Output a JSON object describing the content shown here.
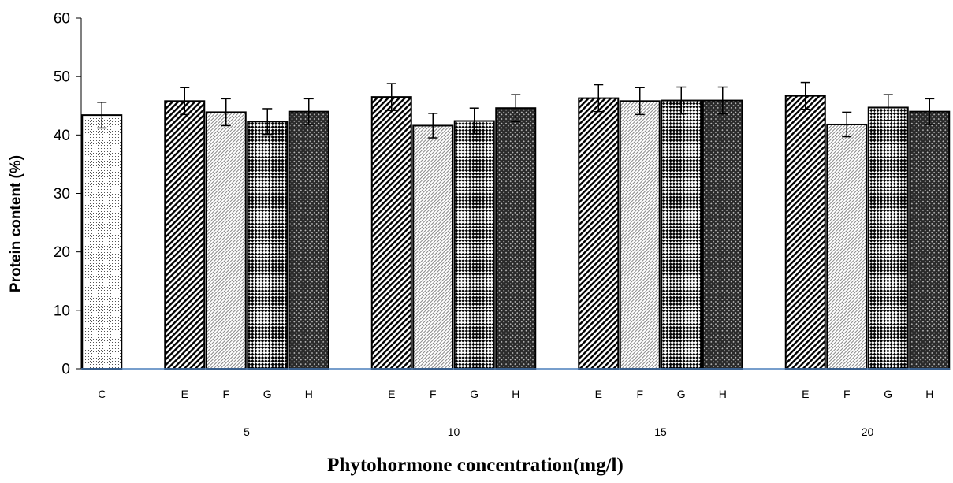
{
  "chart_data": {
    "type": "bar",
    "title": "",
    "xlabel": "Phytohormone concentration(mg/l)",
    "ylabel": "Protein content (%)",
    "ylim": [
      0,
      60
    ],
    "yticks": [
      "0",
      "10",
      "20",
      "30",
      "40",
      "50",
      "60"
    ],
    "grid": false,
    "legend": "none",
    "groups": [
      {
        "label": "",
        "bars": [
          {
            "category": "C",
            "value": 43.4,
            "error": 2.2,
            "pattern": "dots"
          }
        ]
      },
      {
        "label": "5",
        "bars": [
          {
            "category": "E",
            "value": 45.8,
            "error": 2.3,
            "pattern": "diagonal"
          },
          {
            "category": "F",
            "value": 43.9,
            "error": 2.3,
            "pattern": "fine"
          },
          {
            "category": "G",
            "value": 42.3,
            "error": 2.2,
            "pattern": "checker"
          },
          {
            "category": "H",
            "value": 44.0,
            "error": 2.2,
            "pattern": "dense"
          }
        ]
      },
      {
        "label": "10",
        "bars": [
          {
            "category": "E",
            "value": 46.5,
            "error": 2.3,
            "pattern": "diagonal"
          },
          {
            "category": "F",
            "value": 41.6,
            "error": 2.1,
            "pattern": "fine"
          },
          {
            "category": "G",
            "value": 42.4,
            "error": 2.2,
            "pattern": "checker"
          },
          {
            "category": "H",
            "value": 44.6,
            "error": 2.3,
            "pattern": "dense"
          }
        ]
      },
      {
        "label": "15",
        "bars": [
          {
            "category": "E",
            "value": 46.3,
            "error": 2.3,
            "pattern": "diagonal"
          },
          {
            "category": "F",
            "value": 45.8,
            "error": 2.3,
            "pattern": "fine"
          },
          {
            "category": "G",
            "value": 45.9,
            "error": 2.3,
            "pattern": "checker"
          },
          {
            "category": "H",
            "value": 45.9,
            "error": 2.3,
            "pattern": "dense"
          }
        ]
      },
      {
        "label": "20",
        "bars": [
          {
            "category": "E",
            "value": 46.7,
            "error": 2.3,
            "pattern": "diagonal"
          },
          {
            "category": "F",
            "value": 41.8,
            "error": 2.1,
            "pattern": "fine"
          },
          {
            "category": "G",
            "value": 44.7,
            "error": 2.2,
            "pattern": "checker"
          },
          {
            "category": "H",
            "value": 44.0,
            "error": 2.2,
            "pattern": "dense"
          }
        ]
      }
    ],
    "colors": {
      "axis_x": "#4a7ebb",
      "axis_y": "#000000",
      "bar_outline": "#000000"
    }
  }
}
